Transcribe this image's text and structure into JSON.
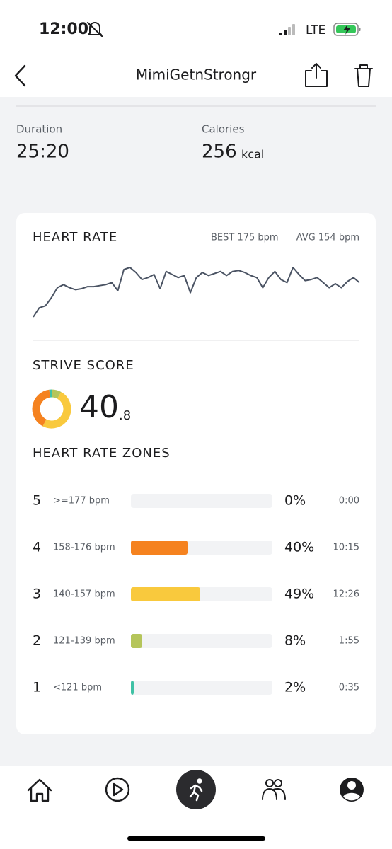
{
  "status_bar": {
    "time": "12:00",
    "network": "LTE"
  },
  "header": {
    "title": "MimiGetnStrongr"
  },
  "summary": {
    "duration_label": "Duration",
    "duration": "25:20",
    "calories_label": "Calories",
    "calories": "256",
    "calories_unit": "kcal"
  },
  "heart_rate": {
    "title": "HEART RATE",
    "best": "BEST 175 bpm",
    "avg": "AVG 154 bpm",
    "trace": [
      121,
      130,
      132,
      140,
      150,
      153,
      150,
      148,
      149,
      151,
      151,
      152,
      153,
      155,
      147,
      168,
      170,
      165,
      158,
      160,
      163,
      149,
      166,
      163,
      160,
      162,
      145,
      160,
      165,
      162,
      164,
      166,
      162,
      166,
      167,
      165,
      162,
      160,
      150,
      160,
      166,
      158,
      155,
      170,
      163,
      157,
      158,
      160,
      155,
      150,
      154,
      150,
      156,
      160,
      155
    ]
  },
  "strive": {
    "title": "STRIVE SCORE",
    "score_whole": "40",
    "score_decimal": ".8"
  },
  "zones": {
    "title": "HEART RATE ZONES",
    "rows": [
      {
        "zone": "5",
        "range": ">=177 bpm",
        "percent": 0,
        "percent_label": "0%",
        "time": "0:00",
        "color": "#e8493f"
      },
      {
        "zone": "4",
        "range": "158-176 bpm",
        "percent": 40,
        "percent_label": "40%",
        "time": "10:15",
        "color": "#f5821f"
      },
      {
        "zone": "3",
        "range": "140-157 bpm",
        "percent": 49,
        "percent_label": "49%",
        "time": "12:26",
        "color": "#f9c93d"
      },
      {
        "zone": "2",
        "range": "121-139 bpm",
        "percent": 8,
        "percent_label": "8%",
        "time": "1:55",
        "color": "#b5c55a"
      },
      {
        "zone": "1",
        "range": "<121 bpm",
        "percent": 2,
        "percent_label": "2%",
        "time": "0:35",
        "color": "#3fc1a5"
      }
    ]
  }
}
